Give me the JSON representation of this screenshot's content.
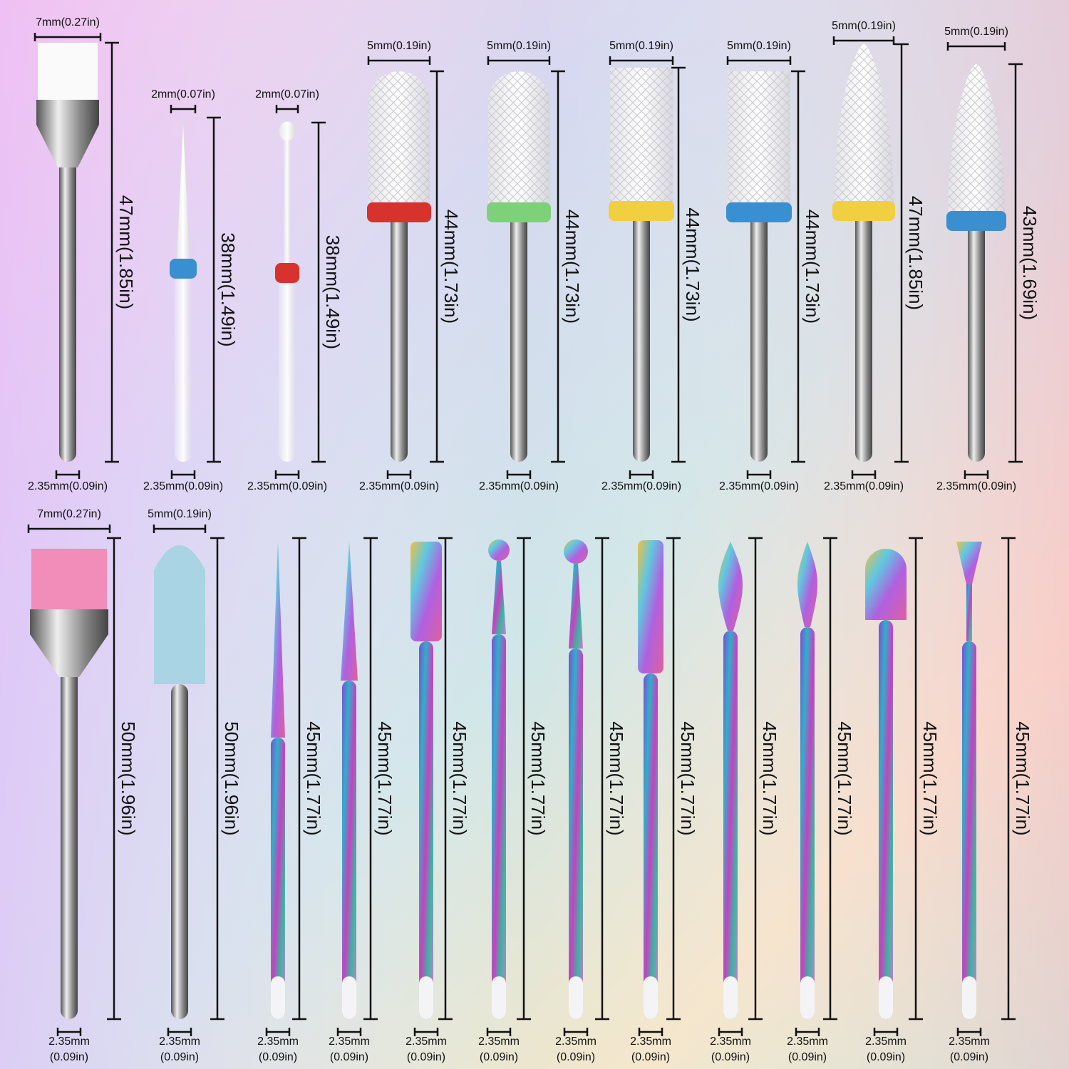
{
  "rows": [
    {
      "bits": [
        {
          "width": "7mm(0.27in)",
          "length": "47mm(1.85in)",
          "shank": "2.35mm(0.09in)"
        },
        {
          "width": "2mm(0.07in)",
          "length": "38mm(1.49in)",
          "shank": "2.35mm(0.09in)"
        },
        {
          "width": "2mm(0.07in)",
          "length": "38mm(1.49in)",
          "shank": "2.35mm(0.09in)"
        },
        {
          "width": "5mm(0.19in)",
          "length": "44mm(1.73in)",
          "shank": "2.35mm(0.09in)"
        },
        {
          "width": "5mm(0.19in)",
          "length": "44mm(1.73in)",
          "shank": "2.35mm(0.09in)"
        },
        {
          "width": "5mm(0.19in)",
          "length": "44mm(1.73in)",
          "shank": "2.35mm(0.09in)"
        },
        {
          "width": "5mm(0.19in)",
          "length": "44mm(1.73in)",
          "shank": "2.35mm(0.09in)"
        },
        {
          "width": "5mm(0.19in)",
          "length": "47mm(1.85in)",
          "shank": "2.35mm(0.09in)"
        },
        {
          "width": "5mm(0.19in)",
          "length": "43mm(1.69in)",
          "shank": "2.35mm(0.09in)"
        }
      ]
    },
    {
      "bits": [
        {
          "width": "7mm(0.27in)",
          "length": "50mm(1.96in)",
          "shank": [
            "2.35mm",
            "(0.09in)"
          ]
        },
        {
          "width": "5mm(0.19in)",
          "length": "50mm(1.96in)",
          "shank": [
            "2.35mm",
            "(0.09in)"
          ]
        },
        {
          "length": "45mm(1.77in)",
          "shank": [
            "2.35mm",
            "(0.09in)"
          ]
        },
        {
          "length": "45mm(1.77in)",
          "shank": [
            "2.35mm",
            "(0.09in)"
          ]
        },
        {
          "length": "45mm(1.77in)",
          "shank": [
            "2.35mm",
            "(0.09in)"
          ]
        },
        {
          "length": "45mm(1.77in)",
          "shank": [
            "2.35mm",
            "(0.09in)"
          ]
        },
        {
          "length": "45mm(1.77in)",
          "shank": [
            "2.35mm",
            "(0.09in)"
          ]
        },
        {
          "length": "45mm(1.77in)",
          "shank": [
            "2.35mm",
            "(0.09in)"
          ]
        },
        {
          "length": "45mm(1.77in)",
          "shank": [
            "2.35mm",
            "(0.09in)"
          ]
        },
        {
          "length": "45mm(1.77in)",
          "shank": [
            "2.35mm",
            "(0.09in)"
          ]
        },
        {
          "length": "45mm(1.77in)",
          "shank": [
            "2.35mm",
            "(0.09in)"
          ]
        },
        {
          "length": "45mm(1.77in)",
          "shank": [
            "2.35mm",
            "(0.09in)"
          ]
        }
      ]
    }
  ]
}
